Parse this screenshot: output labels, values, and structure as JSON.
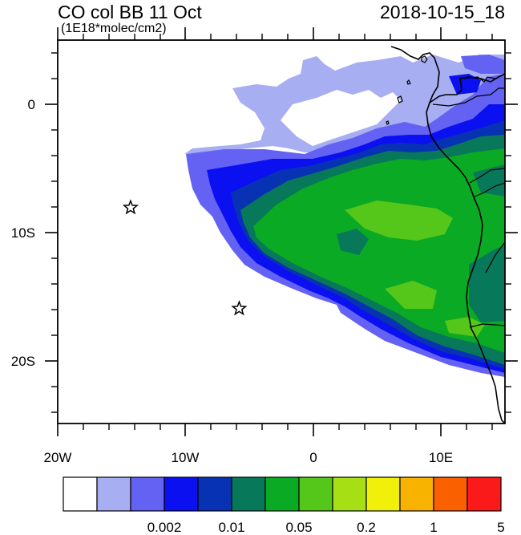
{
  "title": "CO col BB 11 Oct",
  "subtitle": "(1E18*molec/cm2)",
  "datetime": "2018-10-15_18",
  "axes": {
    "x_ticks": [
      "20W",
      "10W",
      "0",
      "10E"
    ],
    "y_ticks": [
      "0",
      "10S",
      "20S"
    ]
  },
  "colorbar": {
    "colors": [
      "#ffffff",
      "#a8aef2",
      "#6462f2",
      "#0a10f0",
      "#0832b4",
      "#08785a",
      "#0aaa24",
      "#55c61a",
      "#a6e014",
      "#f0f00a",
      "#f8b200",
      "#fa6000",
      "#fa1a1a"
    ],
    "labels": [
      "0.002",
      "0.01",
      "0.05",
      "0.2",
      "1",
      "5"
    ]
  },
  "markers": [
    {
      "name": "star",
      "lon": -14.3,
      "lat": -8.1
    },
    {
      "name": "star",
      "lon": -5.8,
      "lat": -16.0
    }
  ],
  "map": {
    "lon_range": [
      -20,
      15
    ],
    "lat_range": [
      -25,
      5
    ],
    "projection": "lat-lon"
  }
}
